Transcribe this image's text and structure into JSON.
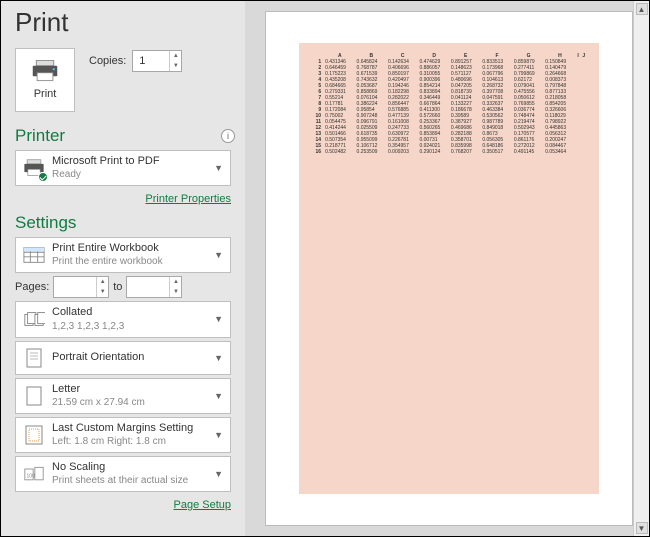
{
  "title": "Print",
  "print_button_label": "Print",
  "copies": {
    "label": "Copies:",
    "value": "1"
  },
  "printer_section": {
    "heading": "Printer",
    "selected": {
      "name": "Microsoft Print to PDF",
      "status": "Ready"
    },
    "properties_link": "Printer Properties"
  },
  "settings_section": {
    "heading": "Settings",
    "scope": {
      "title": "Print Entire Workbook",
      "sub": "Print the entire workbook"
    },
    "pages": {
      "label": "Pages:",
      "to": "to",
      "from": "",
      "until": ""
    },
    "collation": {
      "title": "Collated",
      "sub": "1,2,3    1,2,3    1,2,3"
    },
    "orientation": {
      "title": "Portrait Orientation"
    },
    "paper": {
      "title": "Letter",
      "sub": "21.59 cm x 27.94 cm"
    },
    "margins": {
      "title": "Last Custom Margins Setting",
      "sub": "Left: 1.8 cm   Right: 1.8 cm"
    },
    "scaling": {
      "title": "No Scaling",
      "sub": "Print sheets at their actual size"
    },
    "page_setup_link": "Page Setup"
  },
  "colors": {
    "accent": "#107c41",
    "preview_bg": "#f5d6c8"
  },
  "preview_table": {
    "columns": [
      "A",
      "B",
      "C",
      "D",
      "E",
      "F",
      "G",
      "H",
      "I",
      "J"
    ],
    "rows": [
      [
        "1",
        "0.431346",
        "0.645824",
        "0.142634",
        "0.474629",
        "0.891257",
        "0.833513",
        "0.859879",
        "0.150849",
        ""
      ],
      [
        "2",
        "0.646459",
        "0.768787",
        "0.406696",
        "0.886057",
        "0.148623",
        "0.173968",
        "0.277411",
        "0.140479",
        ""
      ],
      [
        "3",
        "0.175223",
        "0.671539",
        "0.850197",
        "0.310055",
        "0.571127",
        "0.067796",
        "0.799869",
        "0.264668",
        ""
      ],
      [
        "4",
        "0.435208",
        "0.743632",
        "0.420497",
        "0.900396",
        "0.480696",
        "0.104613",
        "0.62172",
        "0.008373",
        ""
      ],
      [
        "5",
        "0.684665",
        "0.053687",
        "0.194246",
        "0.854214",
        "0.047205",
        "0.268732",
        "0.079041",
        "0.797848",
        ""
      ],
      [
        "6",
        "0.279331",
        "0.858869",
        "0.182298",
        "0.833894",
        "0.818739",
        "0.397708",
        "0.475556",
        "0.877133",
        ""
      ],
      [
        "7",
        "0.55214",
        "0.076104",
        "0.282022",
        "0.346449",
        "0.041124",
        "0.047591",
        "0.050612",
        "0.218058",
        ""
      ],
      [
        "8",
        "0.17781",
        "0.386224",
        "0.856447",
        "0.667864",
        "0.133227",
        "0.332637",
        "0.769855",
        "0.854205",
        ""
      ],
      [
        "9",
        "0.172084",
        "0.95854",
        "0.576885",
        "0.411300",
        "0.186678",
        "0.463384",
        "0.036774",
        "0.326606",
        ""
      ],
      [
        "10",
        "0.75002",
        "0.907248",
        "0.477139",
        "0.572660",
        "0.39589",
        "0.530562",
        "0.748474",
        "0.118029",
        ""
      ],
      [
        "11",
        "0.054475",
        "0.096791",
        "0.161008",
        "0.253367",
        "0.387927",
        "0.987789",
        "0.219474",
        "0.798922",
        ""
      ],
      [
        "12",
        "0.414244",
        "0.025509",
        "0.247733",
        "0.560265",
        "0.469686",
        "0.849018",
        "0.502943",
        "0.445863",
        ""
      ],
      [
        "13",
        "0.501466",
        "0.618735",
        "0.630972",
        "0.853894",
        "0.282188",
        "0.8673",
        "0.170577",
        "0.056312",
        ""
      ],
      [
        "14",
        "0.507354",
        "0.955099",
        "0.226781",
        "0.00731",
        "0.358701",
        "0.056305",
        "0.861176",
        "0.200247",
        ""
      ],
      [
        "15",
        "0.218771",
        "0.106712",
        "0.354957",
        "0.924021",
        "0.835998",
        "0.648186",
        "0.272012",
        "0.084467",
        ""
      ],
      [
        "16",
        "0.502482",
        "0.253509",
        "0.009203",
        "0.290124",
        "0.768207",
        "0.350517",
        "0.491145",
        "0.053464",
        ""
      ]
    ]
  }
}
